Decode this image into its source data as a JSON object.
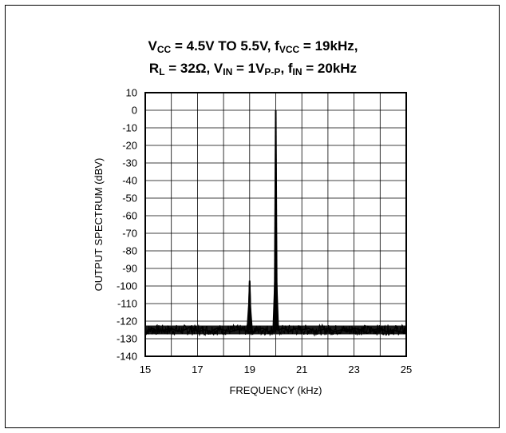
{
  "chart_data": {
    "type": "line",
    "title_line1": [
      "V",
      "CC",
      " = 4.5V TO 5.5V, f",
      "VCC",
      " = 19kHz,"
    ],
    "title_line2": [
      "R",
      "L",
      " = 32Ω, V",
      "IN",
      " = 1V",
      "P-P",
      ", f",
      "IN",
      " = 20kHz"
    ],
    "xlabel": "FREQUENCY (kHz)",
    "ylabel": "OUTPUT SPECTRUM (dBV)",
    "xlim": [
      15,
      25
    ],
    "ylim": [
      -140,
      10
    ],
    "xticks": [
      15,
      17,
      19,
      21,
      23,
      25
    ],
    "yticks": [
      10,
      0,
      -10,
      -20,
      -30,
      -40,
      -50,
      -60,
      -70,
      -80,
      -90,
      -100,
      -110,
      -120,
      -130,
      -140
    ],
    "grid": true,
    "noise_floor": -125,
    "peaks": [
      {
        "x": 19,
        "y": -97
      },
      {
        "x": 20,
        "y": 0
      }
    ],
    "series": [
      {
        "x": [
          15.0,
          15.25,
          15.5,
          15.75,
          16.0,
          16.25,
          16.5,
          16.75,
          17.0,
          17.25,
          17.5,
          17.75,
          18.0,
          18.25,
          18.5,
          18.75,
          18.9,
          18.97,
          19.0,
          19.03,
          19.1,
          19.3,
          19.5,
          19.7,
          19.9,
          19.97,
          20.0,
          20.03,
          20.1,
          20.3,
          20.5,
          20.75,
          21.0,
          21.25,
          21.5,
          21.75,
          22.0,
          22.25,
          22.5,
          22.75,
          23.0,
          23.25,
          23.5,
          23.75,
          24.0,
          24.25,
          24.5,
          24.75,
          25.0
        ],
        "values": [
          -128,
          -124,
          -126,
          -125,
          -124,
          -126,
          -125,
          -123,
          -126,
          -125,
          -126,
          -124,
          -125,
          -126,
          -125,
          -124,
          -126,
          -110,
          -97,
          -112,
          -126,
          -125,
          -124,
          -126,
          -125,
          -95,
          0,
          -95,
          -125,
          -124,
          -126,
          -124,
          -125,
          -124,
          -126,
          -125,
          -124,
          -126,
          -125,
          -126,
          -124,
          -125,
          -127,
          -125,
          -124,
          -126,
          -125,
          -126,
          -127
        ]
      }
    ]
  }
}
